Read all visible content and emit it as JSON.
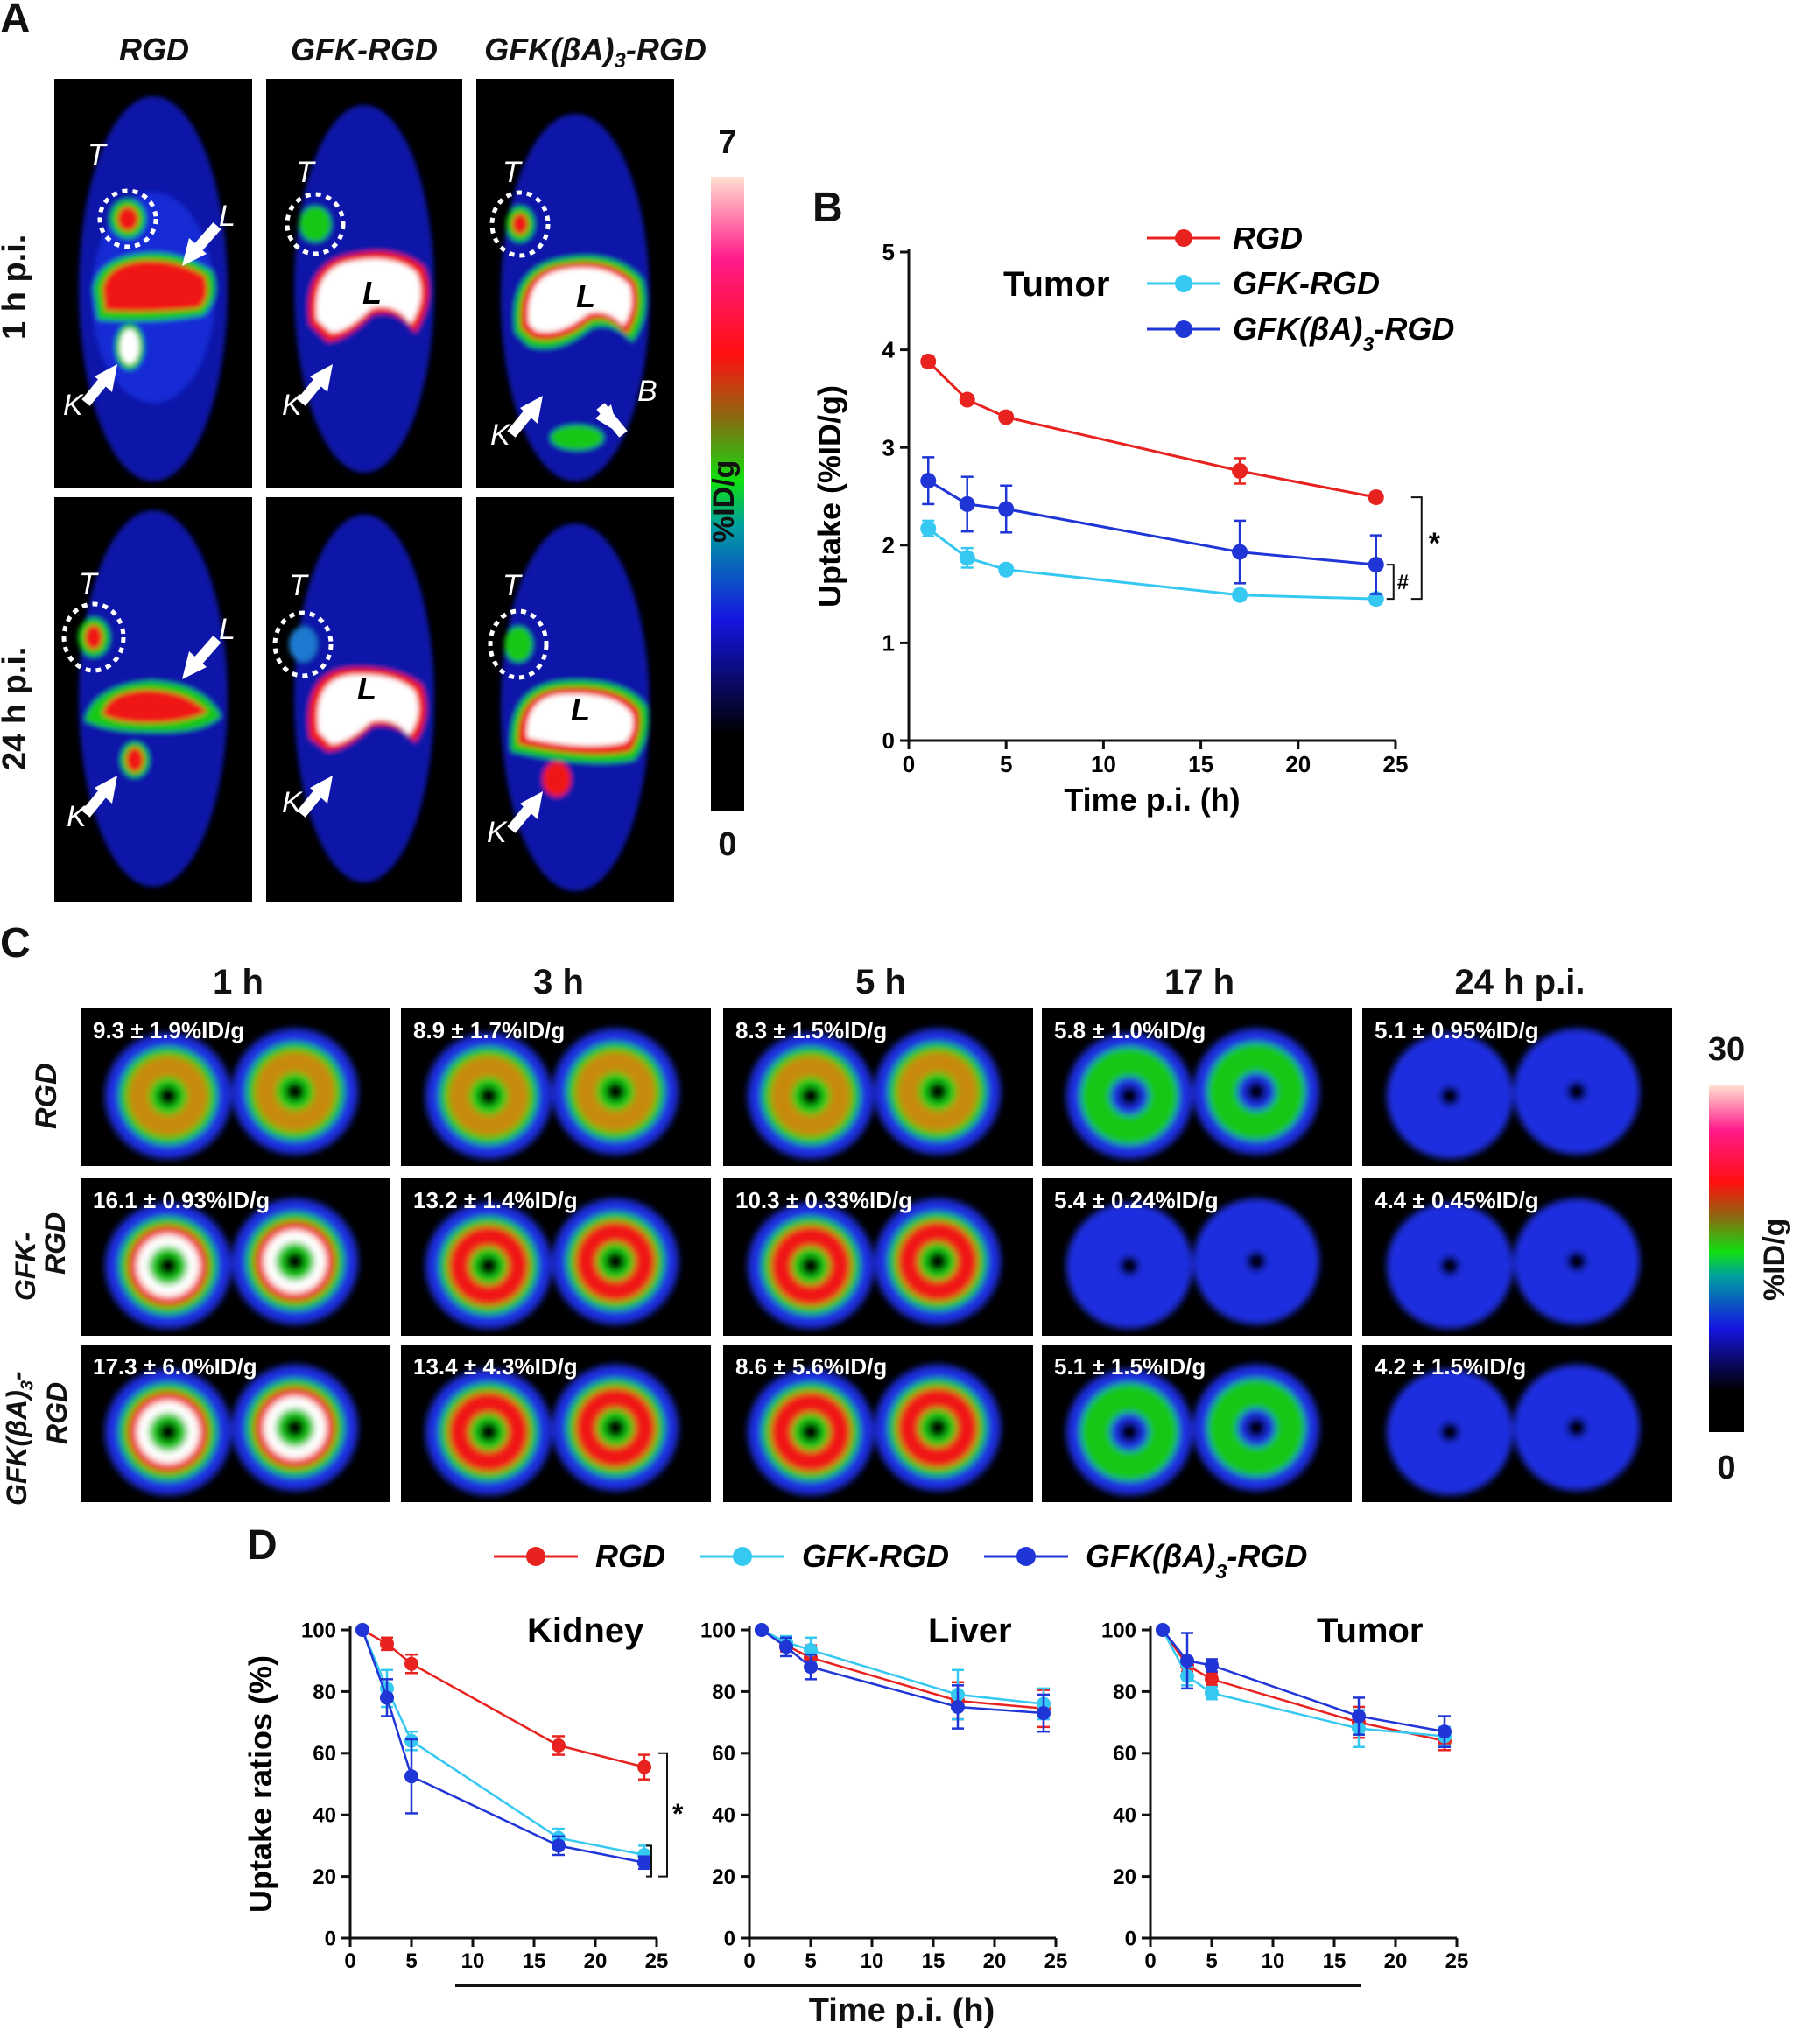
{
  "panel_labels": {
    "a": "A",
    "b": "B",
    "c": "C",
    "d": "D"
  },
  "panelA": {
    "columns": [
      "RGD",
      "GFK-RGD"
    ],
    "column3_base": "GFK(βA)",
    "column3_sub": "3",
    "column3_tail": "-RGD",
    "rows": [
      "1 h p.i.",
      "24 h p.i."
    ],
    "colorbar": {
      "max": "7",
      "min": "0",
      "unit": "%ID/g"
    },
    "organ_labels": {
      "tumor": "T",
      "liver": "L",
      "kidney": "K",
      "bladder": "B"
    }
  },
  "panelC": {
    "times": [
      "1 h",
      "3 h",
      "5 h",
      "17 h",
      "24 h p.i."
    ],
    "row_labels": [
      "RGD",
      "GFK-RGD",
      "GFK(βA)3-RGD"
    ],
    "row2_line1": "GFK-",
    "row2_line2": "RGD",
    "row3_line1_base": "GFK(βA)",
    "row3_line1_sub": "3",
    "row3_line1_tail": "-",
    "row3_line2": "RGD",
    "values": [
      [
        "9.3 ± 1.9%ID/g",
        "8.9 ± 1.7%ID/g",
        "8.3 ± 1.5%ID/g",
        "5.8 ± 1.0%ID/g",
        "5.1 ± 0.95%ID/g"
      ],
      [
        "16.1 ± 0.93%ID/g",
        "13.2 ± 1.4%ID/g",
        "10.3 ± 0.33%ID/g",
        "5.4 ± 0.24%ID/g",
        "4.4 ± 0.45%ID/g"
      ],
      [
        "17.3 ± 6.0%ID/g",
        "13.4 ± 4.3%ID/g",
        "8.6 ± 5.6%ID/g",
        "5.1 ± 1.5%ID/g",
        "4.2 ± 1.5%ID/g"
      ]
    ],
    "colorbar": {
      "max": "30",
      "min": "0",
      "unit": "%ID/g"
    }
  },
  "colors": {
    "rgd": "#e8231f",
    "gfk": "#35c8f0",
    "gfkba": "#1f35d6"
  },
  "chart_data": [
    {
      "id": "B",
      "type": "line",
      "title": "Tumor",
      "xlabel": "Time p.i. (h)",
      "ylabel": "Uptake (%ID/g)",
      "xlim": [
        0,
        25
      ],
      "ylim": [
        0,
        5
      ],
      "xticks": [
        0,
        5,
        10,
        15,
        20,
        25
      ],
      "yticks": [
        0,
        1,
        2,
        3,
        4,
        5
      ],
      "x": [
        1,
        3,
        5,
        17,
        24
      ],
      "series": [
        {
          "name": "RGD",
          "values": [
            3.88,
            3.49,
            3.31,
            2.76,
            2.49
          ],
          "err": [
            0.05,
            0.04,
            0.04,
            0.13,
            0.05
          ]
        },
        {
          "name": "GFK-RGD",
          "values": [
            2.17,
            1.87,
            1.75,
            1.49,
            1.45
          ],
          "err": [
            0.08,
            0.1,
            0.05,
            0.05,
            0.05
          ]
        },
        {
          "name": "GFK(βA)3-RGD",
          "values": [
            2.66,
            2.42,
            2.37,
            1.93,
            1.8
          ],
          "err": [
            0.24,
            0.28,
            0.24,
            0.32,
            0.3
          ]
        }
      ],
      "annotations": [
        "*",
        "#"
      ]
    },
    {
      "id": "D-kidney",
      "type": "line",
      "title": "Kidney",
      "ylabel": "Uptake ratios (%)",
      "xlim": [
        0,
        25
      ],
      "ylim": [
        0,
        100
      ],
      "xticks": [
        0,
        5,
        10,
        15,
        20,
        25
      ],
      "yticks": [
        0,
        20,
        40,
        60,
        80,
        100
      ],
      "x": [
        1,
        3,
        5,
        17,
        24
      ],
      "series": [
        {
          "name": "RGD",
          "values": [
            100,
            95.5,
            89,
            62.5,
            55.5
          ],
          "err": [
            0,
            2,
            3,
            3,
            4
          ]
        },
        {
          "name": "GFK-RGD",
          "values": [
            100,
            81,
            64,
            32.5,
            27
          ],
          "err": [
            0,
            6,
            3,
            3,
            3
          ]
        },
        {
          "name": "GFK(βA)3-RGD",
          "values": [
            100,
            78,
            52.5,
            30,
            24.5
          ],
          "err": [
            0,
            6,
            12,
            3,
            2
          ]
        }
      ],
      "annotations": [
        "*"
      ]
    },
    {
      "id": "D-liver",
      "type": "line",
      "title": "Liver",
      "xlim": [
        0,
        25
      ],
      "ylim": [
        0,
        100
      ],
      "xticks": [
        0,
        5,
        10,
        15,
        20,
        25
      ],
      "yticks": [
        0,
        20,
        40,
        60,
        80,
        100
      ],
      "x": [
        1,
        3,
        5,
        17,
        24
      ],
      "series": [
        {
          "name": "RGD",
          "values": [
            100,
            95,
            91,
            77,
            74.5
          ],
          "err": [
            0,
            2,
            4,
            6,
            6
          ]
        },
        {
          "name": "GFK-RGD",
          "values": [
            100,
            96,
            93.5,
            79,
            76
          ],
          "err": [
            0,
            2,
            4,
            8,
            5
          ]
        },
        {
          "name": "GFK(βA)3-RGD",
          "values": [
            100,
            94.5,
            88,
            75,
            73
          ],
          "err": [
            0,
            3,
            4,
            7,
            6
          ]
        }
      ]
    },
    {
      "id": "D-tumor",
      "type": "line",
      "title": "Tumor",
      "xlim": [
        0,
        25
      ],
      "ylim": [
        0,
        100
      ],
      "xticks": [
        0,
        5,
        10,
        15,
        20,
        25
      ],
      "yticks": [
        0,
        20,
        40,
        60,
        80,
        100
      ],
      "x": [
        1,
        3,
        5,
        17,
        24
      ],
      "series": [
        {
          "name": "RGD",
          "values": [
            100,
            88.5,
            84,
            70,
            64
          ],
          "err": [
            0,
            2,
            2,
            5,
            3
          ]
        },
        {
          "name": "GFK-RGD",
          "values": [
            100,
            85,
            79.5,
            68,
            65.5
          ],
          "err": [
            0,
            3,
            2,
            6,
            3
          ]
        },
        {
          "name": "GFK(βA)3-RGD",
          "values": [
            100,
            90,
            88.5,
            72,
            67
          ],
          "err": [
            0,
            9,
            2,
            6,
            5
          ]
        }
      ]
    }
  ],
  "panelD": {
    "shared_xlabel": "Time p.i. (h)",
    "legend": [
      "RGD",
      "GFK-RGD",
      "GFK(βA)3-RGD"
    ]
  }
}
